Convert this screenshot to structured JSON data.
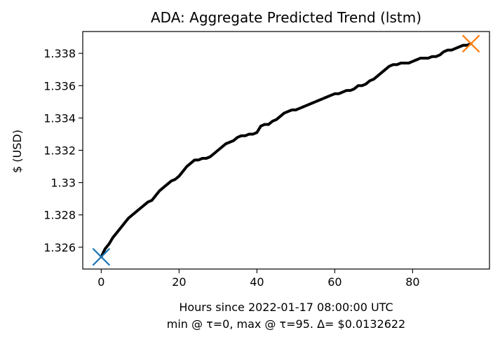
{
  "chart_data": {
    "type": "line",
    "title": "ADA: Aggregate Predicted Trend (lstm)",
    "xlabel": "Hours since 2022-01-17 08:00:00 UTC",
    "xlabel_line2": "min @ τ=0, max @ τ=95. Δ= $0.0132622",
    "ylabel": "$ (USD)",
    "xlim": [
      -4.75,
      99.75
    ],
    "ylim": [
      1.32465,
      1.33935
    ],
    "x_ticks": [
      {
        "value": 0,
        "label": "0"
      },
      {
        "value": 20,
        "label": "20"
      },
      {
        "value": 40,
        "label": "40"
      },
      {
        "value": 60,
        "label": "60"
      },
      {
        "value": 80,
        "label": "80"
      }
    ],
    "y_ticks": [
      {
        "value": 1.326,
        "label": "1.326"
      },
      {
        "value": 1.328,
        "label": "1.328"
      },
      {
        "value": 1.33,
        "label": "1.33"
      },
      {
        "value": 1.332,
        "label": "1.332"
      },
      {
        "value": 1.334,
        "label": "1.334"
      },
      {
        "value": 1.336,
        "label": "1.336"
      },
      {
        "value": 1.338,
        "label": "1.338"
      }
    ],
    "grid": false,
    "series": [
      {
        "color": "#000000",
        "x": [
          0,
          1,
          2,
          3,
          4,
          5,
          6,
          7,
          8,
          9,
          10,
          11,
          12,
          13,
          14,
          15,
          16,
          17,
          18,
          19,
          20,
          21,
          22,
          23,
          24,
          25,
          26,
          27,
          28,
          29,
          30,
          31,
          32,
          33,
          34,
          35,
          36,
          37,
          38,
          39,
          40,
          41,
          42,
          43,
          44,
          45,
          46,
          47,
          48,
          49,
          50,
          51,
          52,
          53,
          54,
          55,
          56,
          57,
          58,
          59,
          60,
          61,
          62,
          63,
          64,
          65,
          66,
          67,
          68,
          69,
          70,
          71,
          72,
          73,
          74,
          75,
          76,
          77,
          78,
          79,
          80,
          81,
          82,
          83,
          84,
          85,
          86,
          87,
          88,
          89,
          90,
          91,
          92,
          93,
          94,
          95
        ],
        "y": [
          1.3254,
          1.3259,
          1.3262,
          1.3266,
          1.3269,
          1.3272,
          1.3275,
          1.3278,
          1.328,
          1.3282,
          1.3284,
          1.3286,
          1.3288,
          1.3289,
          1.3292,
          1.3295,
          1.3297,
          1.3299,
          1.3301,
          1.3302,
          1.3304,
          1.3307,
          1.331,
          1.3312,
          1.3314,
          1.3314,
          1.3315,
          1.3315,
          1.3316,
          1.3318,
          1.332,
          1.3322,
          1.3324,
          1.3325,
          1.3326,
          1.3328,
          1.3329,
          1.3329,
          1.333,
          1.333,
          1.3331,
          1.3335,
          1.3336,
          1.3336,
          1.3338,
          1.3339,
          1.3341,
          1.3343,
          1.3344,
          1.3345,
          1.3345,
          1.3346,
          1.3347,
          1.3348,
          1.3349,
          1.335,
          1.3351,
          1.3352,
          1.3353,
          1.3354,
          1.3355,
          1.3355,
          1.3356,
          1.3357,
          1.3357,
          1.3358,
          1.336,
          1.336,
          1.3361,
          1.3363,
          1.3364,
          1.3366,
          1.3368,
          1.337,
          1.3372,
          1.3373,
          1.3373,
          1.3374,
          1.3374,
          1.3374,
          1.3375,
          1.3376,
          1.3377,
          1.3377,
          1.3377,
          1.3378,
          1.3378,
          1.3379,
          1.3381,
          1.3382,
          1.3382,
          1.3383,
          1.3384,
          1.3385,
          1.3385,
          1.3386
        ]
      }
    ],
    "markers": [
      {
        "type": "min",
        "x": 0,
        "y": 1.3254,
        "color": "#1f77b4",
        "shape": "x"
      },
      {
        "type": "max",
        "x": 95,
        "y": 1.3386,
        "color": "#ff7f0e",
        "shape": "x"
      }
    ]
  }
}
